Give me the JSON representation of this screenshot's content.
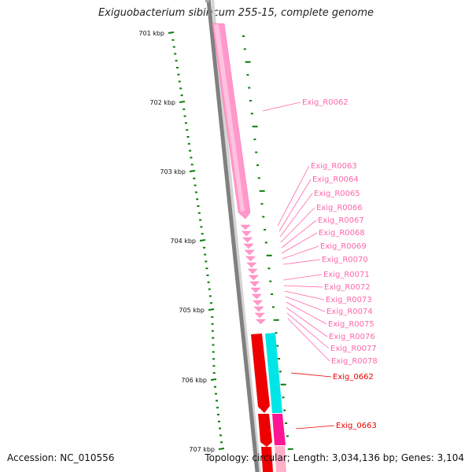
{
  "title": "Exiguobacterium sibiricum 255-15, complete genome",
  "footer": {
    "accession": "Accession: NC_010556",
    "topology": "Topology: circular; Length: 3,034,136 bp; Genes: 3,104"
  },
  "ruler": {
    "labels": [
      "701 kbp",
      "702 kbp",
      "703 kbp",
      "704 kbp",
      "705 kbp",
      "706 kbp",
      "707 kbp"
    ],
    "color": "#0a7d0a"
  },
  "backbone": {
    "color": "#808080"
  },
  "rna_genes": {
    "color": "#ff99cc",
    "label_color": "#ff66aa",
    "labels": [
      "Exig_R0062",
      "Exig_R0063",
      "Exig_R0064",
      "Exig_R0065",
      "Exig_R0066",
      "Exig_R0067",
      "Exig_R0068",
      "Exig_R0069",
      "Exig_R0070",
      "Exig_R0071",
      "Exig_R0072",
      "Exig_R0073",
      "Exig_R0074",
      "Exig_R0075",
      "Exig_R0076",
      "Exig_R0077",
      "Exig_R0078"
    ]
  },
  "cds_genes": {
    "color": "#ee0000",
    "label_color": "#ee0000",
    "labels": [
      "Exig_0662",
      "Exig_0663"
    ]
  },
  "other_features": {
    "cyan_color": "#00e6e6",
    "magenta_color": "#ff1493"
  }
}
